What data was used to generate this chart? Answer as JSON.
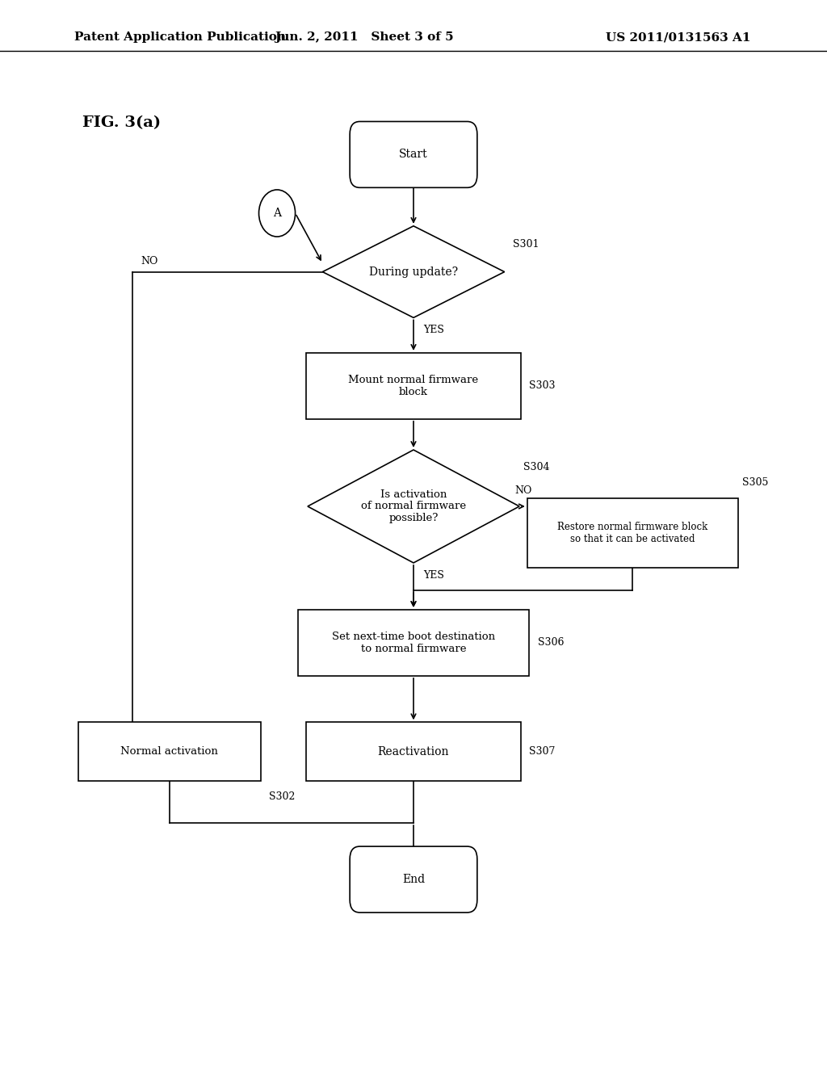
{
  "title_left": "Patent Application Publication",
  "title_center": "Jun. 2, 2011   Sheet 3 of 5",
  "title_right": "US 2011/0131563 A1",
  "fig_label": "FIG. 3(a)",
  "background_color": "#ffffff"
}
